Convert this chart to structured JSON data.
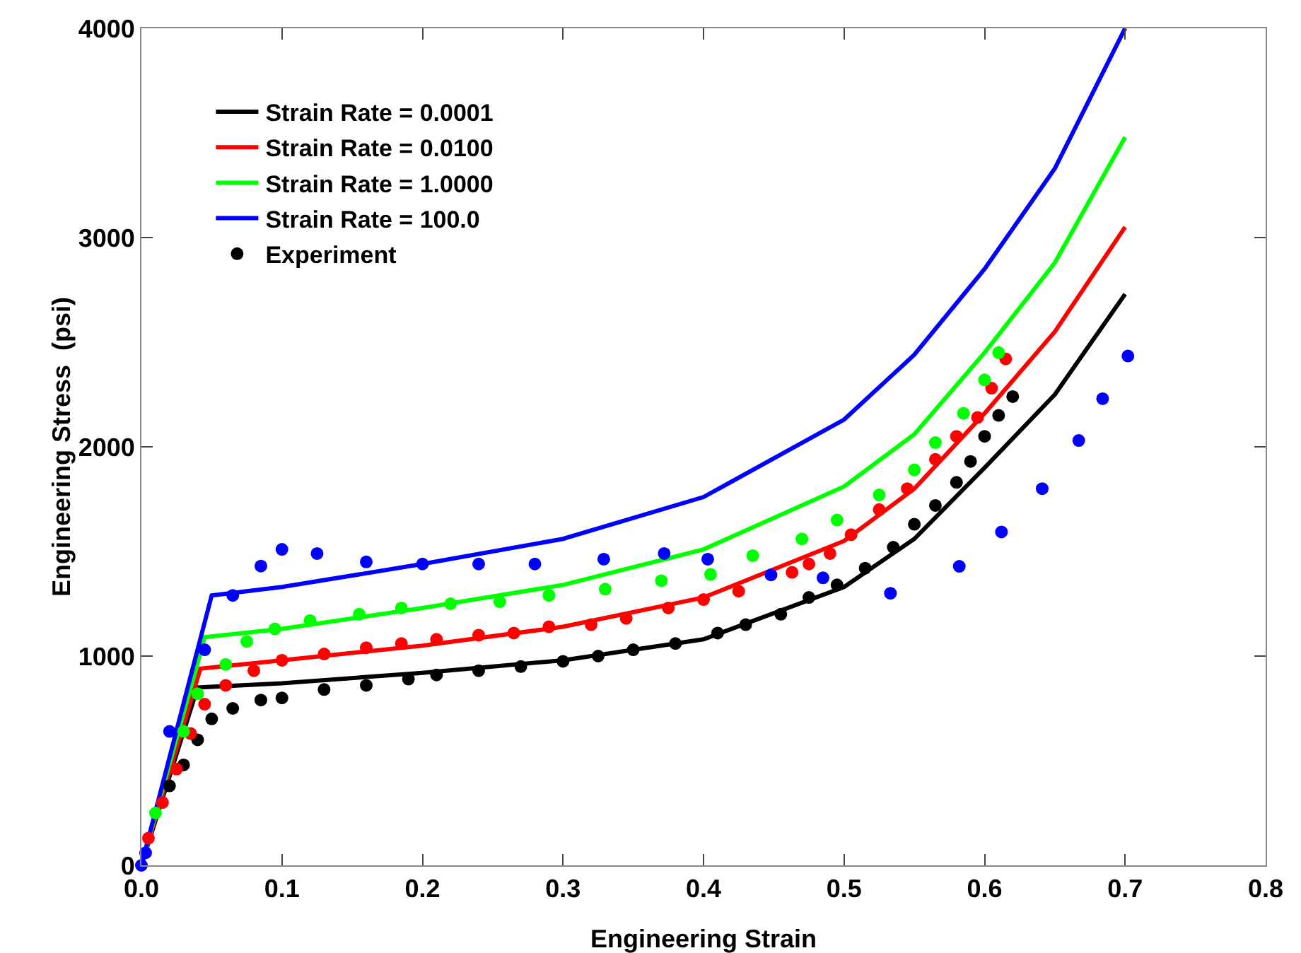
{
  "chart_data": {
    "type": "line",
    "xlabel": "Engineering Strain",
    "ylabel": "Engineering Stress  (psi)",
    "xlim": [
      0,
      0.8
    ],
    "ylim": [
      0,
      4000
    ],
    "xticks": [
      {
        "value": 0,
        "label": "0.0"
      },
      0.1,
      0.2,
      0.3,
      0.4,
      0.5,
      0.6,
      0.7,
      0.8
    ],
    "yticks": [
      0,
      1000,
      2000,
      3000,
      4000
    ],
    "grid": false,
    "legend": "top left",
    "marker": "none",
    "line_style": "solid",
    "series": [
      {
        "name": "Strain Rate = 0.0001",
        "color": "#000000",
        "x": [
          0,
          0.04,
          0.1,
          0.2,
          0.3,
          0.4,
          0.5,
          0.55,
          0.6,
          0.65,
          0.7
        ],
        "values": [
          0,
          850,
          870,
          920,
          980,
          1080,
          1330,
          1560,
          1900,
          2250,
          2730
        ]
      },
      {
        "name": "Strain Rate = 0.0100",
        "color": "#ff0000",
        "x": [
          0,
          0.042,
          0.1,
          0.2,
          0.3,
          0.4,
          0.5,
          0.55,
          0.6,
          0.65,
          0.7
        ],
        "values": [
          0,
          940,
          980,
          1050,
          1140,
          1280,
          1550,
          1800,
          2160,
          2550,
          3050
        ]
      },
      {
        "name": "Strain Rate = 1.0000",
        "color": "#00ff00",
        "x": [
          0,
          0.045,
          0.1,
          0.2,
          0.3,
          0.4,
          0.5,
          0.55,
          0.6,
          0.65,
          0.7
        ],
        "values": [
          0,
          1090,
          1130,
          1230,
          1340,
          1510,
          1810,
          2060,
          2450,
          2880,
          3480
        ]
      },
      {
        "name": "Strain Rate = 100.0",
        "color": "#0000ff",
        "x": [
          0,
          0.05,
          0.1,
          0.2,
          0.3,
          0.4,
          0.5,
          0.55,
          0.6,
          0.65,
          0.7
        ],
        "values": [
          0,
          1290,
          1330,
          1440,
          1560,
          1760,
          2130,
          2440,
          2850,
          3330,
          4000
        ]
      },
      {
        "name": "Experiment",
        "type": "scatter",
        "marker": "circle",
        "color": "#000000",
        "x": [
          0.02,
          0.03,
          0.04,
          0.05,
          0.065,
          0.085,
          0.1,
          0.13,
          0.16,
          0.19,
          0.21,
          0.24,
          0.27,
          0.3,
          0.325,
          0.35,
          0.38,
          0.41,
          0.43,
          0.455,
          0.475,
          0.495,
          0.515,
          0.535,
          0.55,
          0.565,
          0.58,
          0.59,
          0.6,
          0.61,
          0.62
        ],
        "values": [
          380,
          480,
          600,
          700,
          750,
          790,
          800,
          840,
          860,
          890,
          910,
          930,
          950,
          975,
          1000,
          1030,
          1060,
          1110,
          1150,
          1200,
          1280,
          1340,
          1420,
          1520,
          1630,
          1720,
          1830,
          1930,
          2050,
          2150,
          2240
        ]
      },
      {
        "type": "scatter",
        "marker": "circle",
        "color": "#ff0000",
        "x": [
          0.005,
          0.015,
          0.025,
          0.035,
          0.045,
          0.06,
          0.08,
          0.1,
          0.13,
          0.16,
          0.185,
          0.21,
          0.24,
          0.265,
          0.29,
          0.32,
          0.345,
          0.375,
          0.4,
          0.425,
          0.463,
          0.475,
          0.49,
          0.505,
          0.525,
          0.545,
          0.565,
          0.58,
          0.595,
          0.605,
          0.615
        ],
        "values": [
          130,
          300,
          460,
          630,
          770,
          860,
          930,
          980,
          1010,
          1040,
          1060,
          1080,
          1100,
          1110,
          1140,
          1150,
          1180,
          1230,
          1270,
          1310,
          1400,
          1440,
          1490,
          1580,
          1700,
          1800,
          1940,
          2050,
          2140,
          2280,
          2420
        ]
      },
      {
        "type": "scatter",
        "marker": "circle",
        "color": "#00ff00",
        "x": [
          0.01,
          0.03,
          0.04,
          0.06,
          0.075,
          0.095,
          0.12,
          0.155,
          0.185,
          0.22,
          0.255,
          0.29,
          0.33,
          0.37,
          0.405,
          0.435,
          0.47,
          0.495,
          0.525,
          0.55,
          0.565,
          0.585,
          0.6,
          0.61
        ],
        "values": [
          250,
          640,
          820,
          960,
          1070,
          1130,
          1170,
          1200,
          1230,
          1250,
          1260,
          1290,
          1320,
          1360,
          1390,
          1480,
          1560,
          1650,
          1770,
          1890,
          2020,
          2160,
          2320,
          2450
        ]
      },
      {
        "type": "scatter",
        "marker": "circle",
        "color": "#0000ff",
        "x": [
          0,
          0.003,
          0.02,
          0.045,
          0.065,
          0.085,
          0.1,
          0.125,
          0.16,
          0.2,
          0.24,
          0.28,
          0.329,
          0.372,
          0.403,
          0.448,
          0.485,
          0.533,
          0.582,
          0.612,
          0.641,
          0.667,
          0.684,
          0.702
        ],
        "values": [
          0,
          60,
          640,
          1030,
          1290,
          1430,
          1510,
          1490,
          1450,
          1440,
          1440,
          1440,
          1463,
          1490,
          1463,
          1388,
          1374,
          1300,
          1429,
          1593,
          1800,
          2030,
          2230,
          2434
        ]
      }
    ]
  }
}
